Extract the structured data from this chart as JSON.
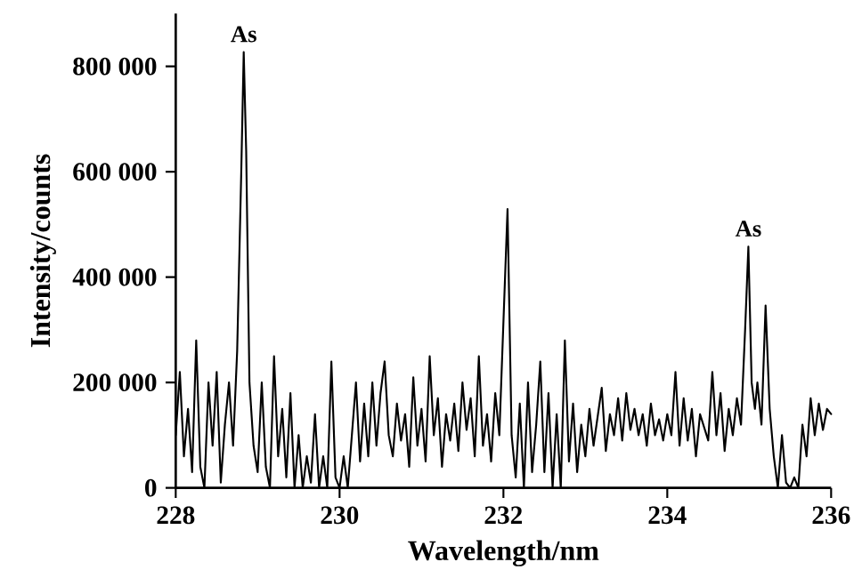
{
  "chart_data": {
    "type": "line",
    "xlabel": "Wavelength/nm",
    "ylabel": "Intensity/counts",
    "xlim": [
      228,
      236
    ],
    "xticks": [
      228,
      230,
      232,
      234,
      236
    ],
    "ylim": [
      0,
      900000
    ],
    "yticks": [
      0,
      {
        "value": 200000,
        "label": "200 000"
      },
      {
        "value": 400000,
        "label": "400 000"
      },
      {
        "value": 600000,
        "label": "600 000"
      },
      {
        "value": 800000,
        "label": "800 000"
      }
    ],
    "grid": false,
    "marker": "none",
    "line_style": "solid",
    "annotations": [
      {
        "text": "As",
        "x": 228.83,
        "y": 827000
      },
      {
        "text": "As",
        "x": 234.99,
        "y": 458000
      }
    ],
    "series": [
      {
        "color": "#000000",
        "x": [
          228.0,
          228.05,
          228.1,
          228.15,
          228.2,
          228.25,
          228.3,
          228.35,
          228.4,
          228.45,
          228.5,
          228.55,
          228.6,
          228.65,
          228.7,
          228.75,
          228.8,
          228.83,
          228.86,
          228.9,
          228.95,
          229.0,
          229.05,
          229.1,
          229.15,
          229.2,
          229.25,
          229.3,
          229.35,
          229.4,
          229.45,
          229.5,
          229.55,
          229.6,
          229.65,
          229.7,
          229.75,
          229.8,
          229.85,
          229.9,
          229.95,
          230.0,
          230.05,
          230.1,
          230.2,
          230.25,
          230.3,
          230.35,
          230.4,
          230.45,
          230.5,
          230.55,
          230.6,
          230.65,
          230.7,
          230.75,
          230.8,
          230.85,
          230.9,
          230.95,
          231.0,
          231.05,
          231.1,
          231.15,
          231.2,
          231.25,
          231.3,
          231.35,
          231.4,
          231.45,
          231.5,
          231.55,
          231.6,
          231.65,
          231.7,
          231.75,
          231.8,
          231.85,
          231.9,
          231.95,
          232.05,
          232.1,
          232.15,
          232.2,
          232.25,
          232.3,
          232.35,
          232.4,
          232.45,
          232.5,
          232.55,
          232.6,
          232.65,
          232.7,
          232.75,
          232.8,
          232.85,
          232.9,
          232.95,
          233.0,
          233.05,
          233.1,
          233.2,
          233.25,
          233.3,
          233.35,
          233.4,
          233.45,
          233.5,
          233.55,
          233.6,
          233.65,
          233.7,
          233.75,
          233.8,
          233.85,
          233.9,
          233.95,
          234.0,
          234.05,
          234.1,
          234.15,
          234.2,
          234.25,
          234.3,
          234.35,
          234.4,
          234.5,
          234.55,
          234.6,
          234.65,
          234.7,
          234.75,
          234.8,
          234.85,
          234.9,
          234.95,
          234.99,
          235.03,
          235.07,
          235.1,
          235.15,
          235.2,
          235.25,
          235.3,
          235.35,
          235.4,
          235.45,
          235.5,
          235.55,
          235.6,
          235.65,
          235.7,
          235.75,
          235.8,
          235.85,
          235.9,
          235.95,
          236.0
        ],
        "values": [
          100000,
          220000,
          60000,
          150000,
          30000,
          280000,
          40000,
          0,
          200000,
          80000,
          220000,
          10000,
          120000,
          200000,
          80000,
          260000,
          600000,
          827000,
          640000,
          200000,
          80000,
          30000,
          200000,
          40000,
          0,
          250000,
          60000,
          150000,
          20000,
          180000,
          0,
          100000,
          0,
          60000,
          10000,
          140000,
          0,
          60000,
          0,
          240000,
          20000,
          0,
          60000,
          0,
          200000,
          50000,
          160000,
          60000,
          200000,
          80000,
          180000,
          240000,
          100000,
          60000,
          160000,
          90000,
          140000,
          40000,
          210000,
          80000,
          150000,
          50000,
          250000,
          100000,
          170000,
          40000,
          140000,
          90000,
          160000,
          70000,
          200000,
          110000,
          170000,
          60000,
          250000,
          80000,
          140000,
          50000,
          180000,
          100000,
          529000,
          100000,
          20000,
          160000,
          0,
          200000,
          30000,
          120000,
          240000,
          30000,
          180000,
          0,
          140000,
          0,
          280000,
          50000,
          160000,
          30000,
          120000,
          60000,
          150000,
          80000,
          190000,
          70000,
          140000,
          100000,
          170000,
          90000,
          180000,
          110000,
          150000,
          100000,
          140000,
          80000,
          160000,
          100000,
          130000,
          90000,
          140000,
          100000,
          220000,
          80000,
          170000,
          90000,
          150000,
          60000,
          140000,
          90000,
          220000,
          100000,
          180000,
          70000,
          150000,
          100000,
          170000,
          120000,
          300000,
          458000,
          200000,
          150000,
          200000,
          120000,
          346000,
          150000,
          60000,
          0,
          100000,
          10000,
          0,
          20000,
          0,
          120000,
          60000,
          170000,
          100000,
          160000,
          110000,
          150000,
          140000
        ]
      }
    ]
  }
}
